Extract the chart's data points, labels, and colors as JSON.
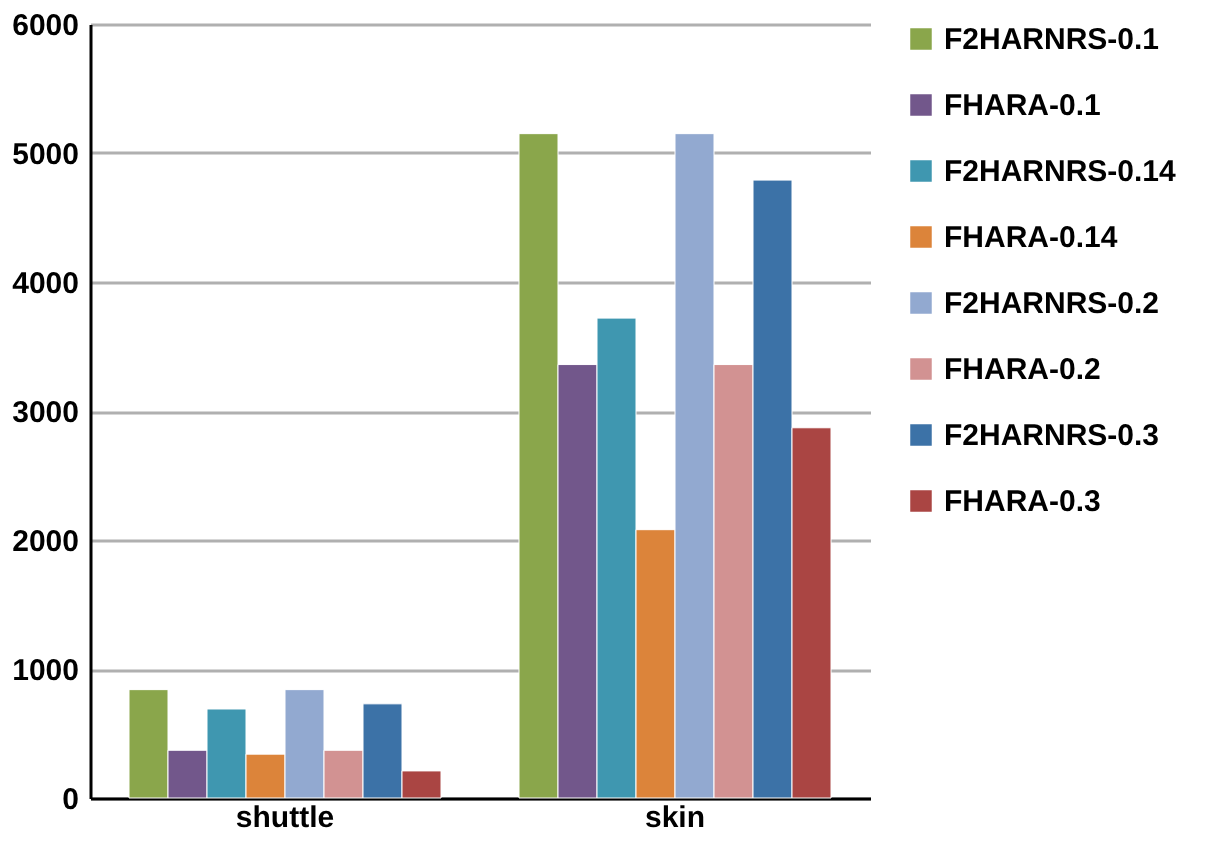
{
  "chart_data": {
    "type": "bar",
    "categories": [
      "shuttle",
      "skin"
    ],
    "series": [
      {
        "name": "F2HARNRS-0.1",
        "color": "#8aa64b",
        "values": [
          840,
          5150
        ]
      },
      {
        "name": "FHARA-0.1",
        "color": "#72578b",
        "values": [
          370,
          3360
        ]
      },
      {
        "name": "F2HARNRS-0.14",
        "color": "#3f97b0",
        "values": [
          690,
          3720
        ]
      },
      {
        "name": "FHARA-0.14",
        "color": "#dc843a",
        "values": [
          340,
          2080
        ]
      },
      {
        "name": "F2HARNRS-0.2",
        "color": "#92a9d0",
        "values": [
          840,
          5150
        ]
      },
      {
        "name": "FHARA-0.2",
        "color": "#d29292",
        "values": [
          370,
          3360
        ]
      },
      {
        "name": "F2HARNRS-0.3",
        "color": "#3c72a7",
        "values": [
          730,
          4790
        ]
      },
      {
        "name": "FHARA-0.3",
        "color": "#aa4543",
        "values": [
          210,
          2870
        ]
      }
    ],
    "ylim": [
      0,
      6000
    ],
    "yticks": [
      0,
      1000,
      2000,
      3000,
      4000,
      5000,
      6000
    ],
    "grid": "y",
    "legend": "right"
  }
}
